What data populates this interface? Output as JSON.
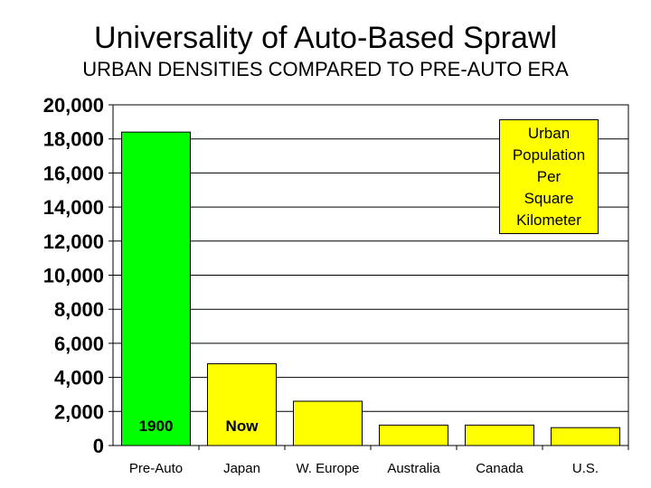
{
  "chart_data": {
    "type": "bar",
    "title": "Universality of Auto-Based Sprawl",
    "subtitle": "URBAN DENSITIES COMPARED TO PRE-AUTO ERA",
    "categories": [
      "Pre-Auto",
      "Japan",
      "W. Europe",
      "Australia",
      "Canada",
      "U.S."
    ],
    "values": [
      18400,
      4800,
      2600,
      1200,
      1200,
      1050
    ],
    "bar_colors": [
      "#00ff00",
      "#ffff00",
      "#ffff00",
      "#ffff00",
      "#ffff00",
      "#ffff00"
    ],
    "bar_labels": [
      "1900",
      "Now",
      "",
      "",
      "",
      ""
    ],
    "ylim": [
      0,
      20000
    ],
    "yticks": [
      0,
      2000,
      4000,
      6000,
      8000,
      10000,
      12000,
      14000,
      16000,
      18000,
      20000
    ],
    "ytick_labels": [
      "0",
      "2,000",
      "4,000",
      "6,000",
      "8,000",
      "10,000",
      "12,000",
      "14,000",
      "16,000",
      "18,000",
      "20,000"
    ],
    "grid": true,
    "legend_text": "Urban\nPopulation\nPer\nSquare\nKilometer",
    "legend_color": "#ffff00",
    "legend_placement": "top-right"
  }
}
